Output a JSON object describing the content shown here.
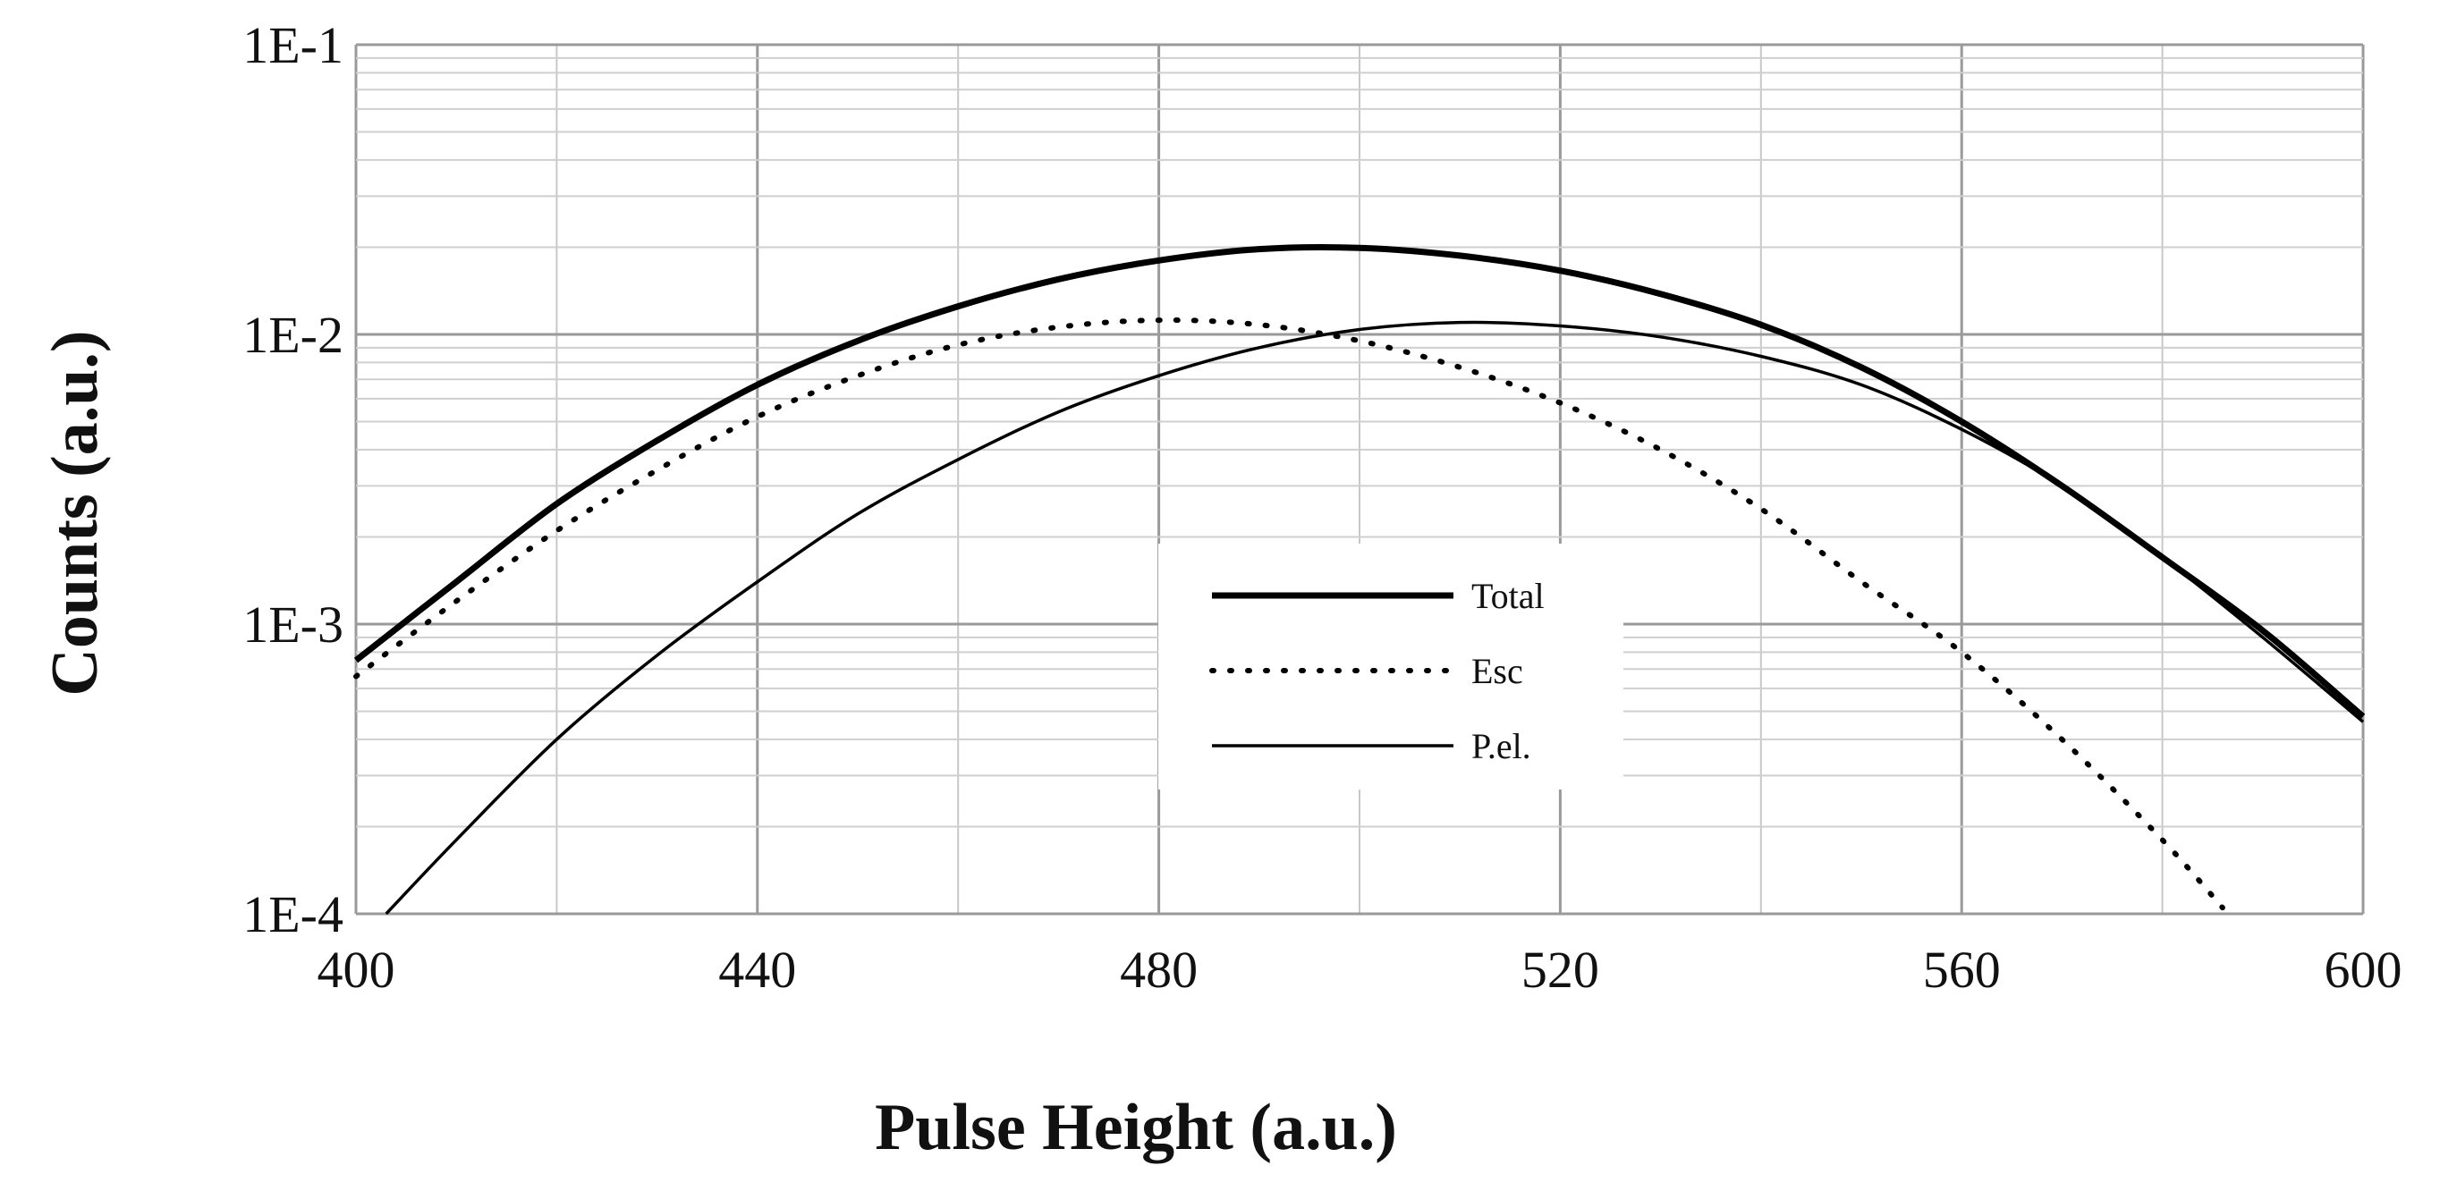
{
  "chart_data": {
    "type": "line",
    "title": "",
    "xlabel": "Pulse Height (a.u.)",
    "ylabel": "Counts (a.u.)",
    "xlim": [
      400,
      600
    ],
    "ylim": [
      0.0001,
      0.1
    ],
    "y_scale": "log",
    "grid": true,
    "legend_position": "center",
    "x_ticks": [
      400,
      440,
      480,
      520,
      560,
      600
    ],
    "x_tick_labels": [
      "400",
      "440",
      "480",
      "520",
      "560",
      "600"
    ],
    "y_ticks": [
      0.0001,
      0.001,
      0.01,
      0.1
    ],
    "y_tick_labels": [
      "1E-4",
      "1E-3",
      "1E-2",
      "1E-1"
    ],
    "series": [
      {
        "name": "Total",
        "style": "thick-solid",
        "color": "#000000",
        "x": [
          400,
          410,
          420,
          430,
          440,
          450,
          460,
          470,
          480,
          490,
          500,
          510,
          520,
          530,
          540,
          550,
          560,
          570,
          580,
          590,
          600
        ],
        "y": [
          0.00075,
          0.0014,
          0.0026,
          0.0043,
          0.0067,
          0.0095,
          0.0125,
          0.0155,
          0.018,
          0.0197,
          0.0199,
          0.0187,
          0.0166,
          0.0138,
          0.0108,
          0.0077,
          0.005,
          0.003,
          0.0017,
          0.00095,
          0.00048
        ]
      },
      {
        "name": "Esc",
        "style": "dotted",
        "color": "#000000",
        "x": [
          400,
          410,
          420,
          430,
          440,
          450,
          460,
          470,
          480,
          490,
          500,
          510,
          520,
          530,
          540,
          550,
          560,
          570,
          580,
          586
        ],
        "y": [
          0.00066,
          0.0012,
          0.0021,
          0.0034,
          0.0052,
          0.0072,
          0.0092,
          0.0106,
          0.0112,
          0.0108,
          0.0095,
          0.0077,
          0.0058,
          0.004,
          0.0025,
          0.0014,
          0.0008,
          0.0004,
          0.00018,
          0.000105
        ]
      },
      {
        "name": "P.el.",
        "style": "thin-solid",
        "color": "#000000",
        "x": [
          403,
          410,
          420,
          430,
          440,
          450,
          460,
          470,
          480,
          490,
          500,
          510,
          520,
          530,
          540,
          550,
          560,
          570,
          580,
          590,
          600
        ],
        "y": [
          0.0001,
          0.00018,
          0.0004,
          0.00078,
          0.0014,
          0.0024,
          0.0037,
          0.0054,
          0.0072,
          0.009,
          0.0104,
          0.011,
          0.0107,
          0.0098,
          0.0084,
          0.0067,
          0.0047,
          0.003,
          0.0017,
          0.0009,
          0.00046
        ]
      }
    ]
  }
}
